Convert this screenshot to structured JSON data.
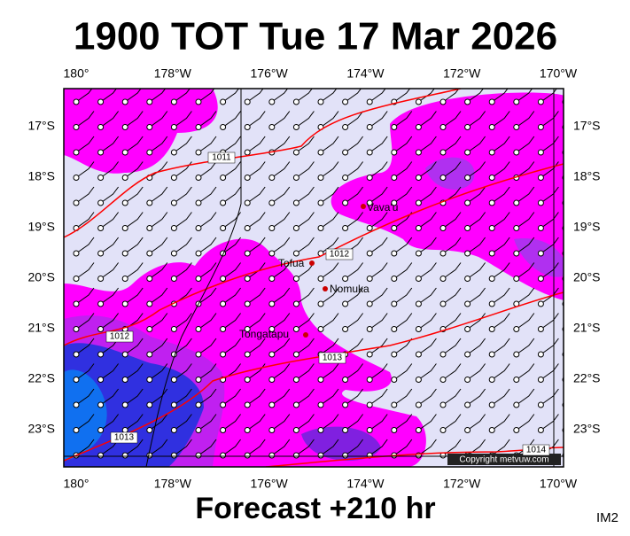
{
  "title": "1900 TOT Tue 17 Mar 2026",
  "forecast": "Forecast +210 hr",
  "corner_label": "IM2",
  "x_labels": [
    "180°",
    "178°W",
    "176°W",
    "174°W",
    "172°W",
    "170°W"
  ],
  "y_labels": [
    "17°S",
    "18°S",
    "19°S",
    "20°S",
    "21°S",
    "22°S",
    "23°S"
  ],
  "places": [
    "Vava'u",
    "Tofua",
    "Nomuka",
    "Tongatapu"
  ],
  "isobar_labels": [
    "1011",
    "1012",
    "1012",
    "1013",
    "1013",
    "1014"
  ],
  "copyright": "Copyright metvuw.com"
}
